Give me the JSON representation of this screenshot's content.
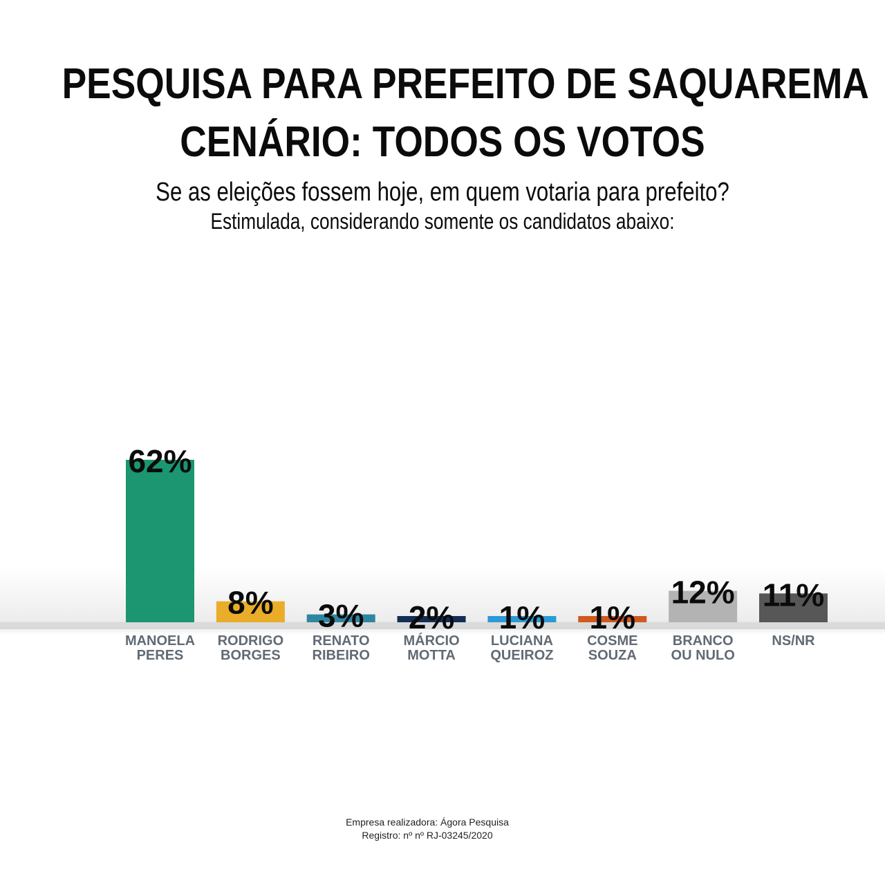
{
  "header": {
    "title_line1": "PESQUISA PARA PREFEITO DE SAQUAREMA",
    "title_line2": "CENÁRIO: TODOS OS VOTOS",
    "question": "Se as eleições fossem hoje, em quem votaria para prefeito?",
    "note": "Estimulada, considerando somente os candidatos abaixo:"
  },
  "chart_data": {
    "type": "bar",
    "title": "PESQUISA PARA PREFEITO DE SAQUAREMA",
    "subtitle": "CENÁRIO: TODOS OS VOTOS",
    "xlabel": "",
    "ylabel": "",
    "ylim": [
      0,
      62
    ],
    "grid": false,
    "categories": [
      [
        "MANOELA",
        "PERES"
      ],
      [
        "RODRIGO",
        "BORGES"
      ],
      [
        "RENATO",
        "RIBEIRO"
      ],
      [
        "MÁRCIO",
        "MOTTA"
      ],
      [
        "LUCIANA",
        "QUEIROZ"
      ],
      [
        "COSME",
        "SOUZA"
      ],
      [
        "BRANCO",
        "OU NULO"
      ],
      [
        "NS/NR"
      ]
    ],
    "values": [
      62,
      8,
      3,
      2,
      1,
      1,
      12,
      11
    ],
    "labels": [
      "62%",
      "8%",
      "3%",
      "2%",
      "1%",
      "1%",
      "12%",
      "11%"
    ],
    "colors": [
      "#1b9670",
      "#e9ad2a",
      "#2f86a0",
      "#142d56",
      "#2b9ad6",
      "#d1581e",
      "#b3b3b3",
      "#575757"
    ]
  },
  "footer": {
    "company": "Empresa realizadora: Ágora Pesquisa",
    "registry": "Registro: nº nº RJ-03245/2020"
  }
}
